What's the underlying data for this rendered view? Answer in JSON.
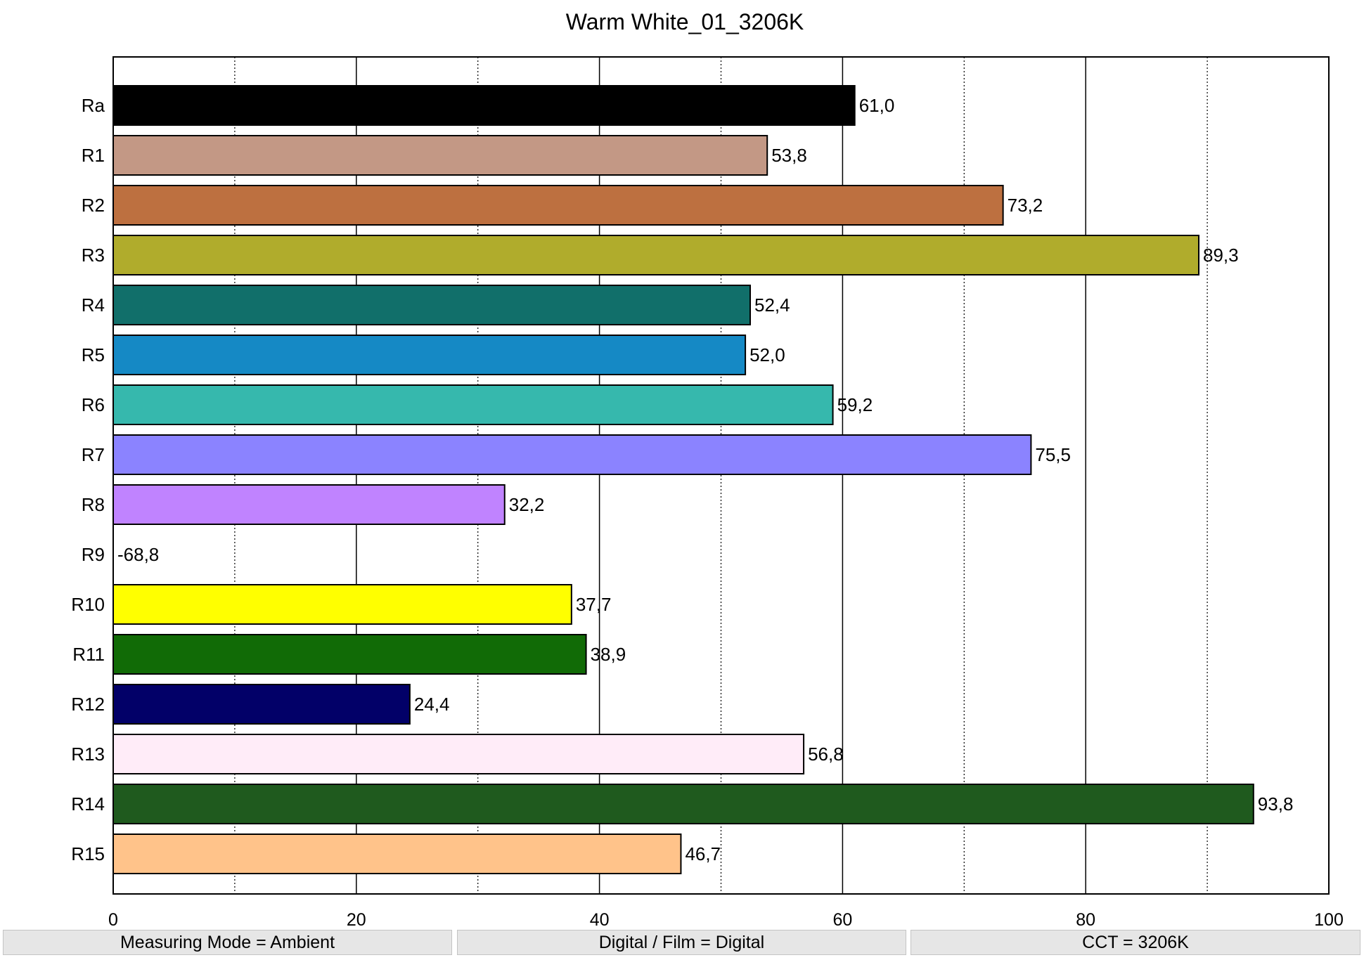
{
  "chart_data": {
    "type": "bar",
    "orientation": "horizontal",
    "title": "Warm White_01_3206K",
    "categories": [
      "Ra",
      "R1",
      "R2",
      "R3",
      "R4",
      "R5",
      "R6",
      "R7",
      "R8",
      "R9",
      "R10",
      "R11",
      "R12",
      "R13",
      "R14",
      "R15"
    ],
    "values": [
      61.0,
      53.8,
      73.2,
      89.3,
      52.4,
      52.0,
      59.2,
      75.5,
      32.2,
      -68.8,
      37.7,
      38.9,
      24.4,
      56.8,
      93.8,
      46.7
    ],
    "value_labels": [
      "61,0",
      "53,8",
      "73,2",
      "89,3",
      "52,4",
      "52,0",
      "59,2",
      "75,5",
      "32,2",
      "-68,8",
      "37,7",
      "38,9",
      "24,4",
      "56,8",
      "93,8",
      "46,7"
    ],
    "colors": [
      "#000000",
      "#c39885",
      "#bd7040",
      "#b0ac2c",
      "#116f6a",
      "#1589c5",
      "#36b8ad",
      "#8b83ff",
      "#c083ff",
      "#e64070",
      "#ffff00",
      "#116b06",
      "#020068",
      "#ffecf8",
      "#1f5a1e",
      "#ffc38a"
    ],
    "xlim": [
      0,
      100
    ],
    "xticks": [
      0,
      20,
      40,
      60,
      80,
      100
    ],
    "grid": "vertical, solid major every 20, dotted minor every 10",
    "legend": "none",
    "xlabel": "",
    "ylabel": ""
  },
  "footer": {
    "cells": [
      "Measuring Mode = Ambient",
      "Digital / Film = Digital",
      "CCT = 3206K"
    ]
  }
}
